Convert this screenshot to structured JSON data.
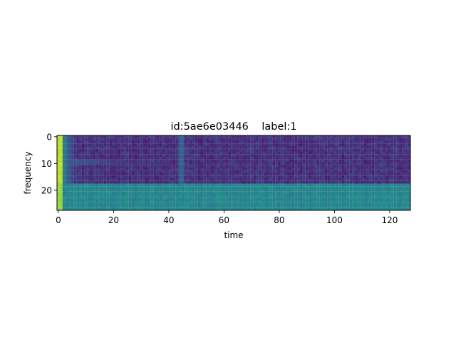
{
  "chart_data": {
    "type": "heatmap",
    "title": "id:5ae6e03446    label:1",
    "xlabel": "time",
    "ylabel": "frequency",
    "xlim": [
      -0.5,
      127.5
    ],
    "ylim": [
      27.5,
      -0.5
    ],
    "x_ticks": [
      0,
      20,
      40,
      60,
      80,
      100,
      120
    ],
    "y_ticks": [
      0,
      10,
      20
    ],
    "grid": false,
    "legend": "none",
    "colormap": "viridis",
    "rows": 28,
    "cols": 128,
    "band_profile": [
      {
        "rows": [
          0,
          17
        ],
        "base_level": 0.14,
        "noise": 0.05
      },
      {
        "rows": [
          18,
          27
        ],
        "base_level": 0.46,
        "noise": 0.03
      }
    ],
    "features": [
      {
        "kind": "onset_spike",
        "cols": [
          0,
          1
        ],
        "level": 0.92
      },
      {
        "kind": "onset_decay",
        "cols": [
          2,
          5
        ],
        "level": 0.4
      },
      {
        "kind": "harmonic_line",
        "rows": [
          9,
          10
        ],
        "cols": [
          0,
          28
        ],
        "level": 0.3
      },
      {
        "kind": "vertical_streak",
        "cols": [
          44,
          45
        ],
        "level": 0.3
      }
    ]
  }
}
